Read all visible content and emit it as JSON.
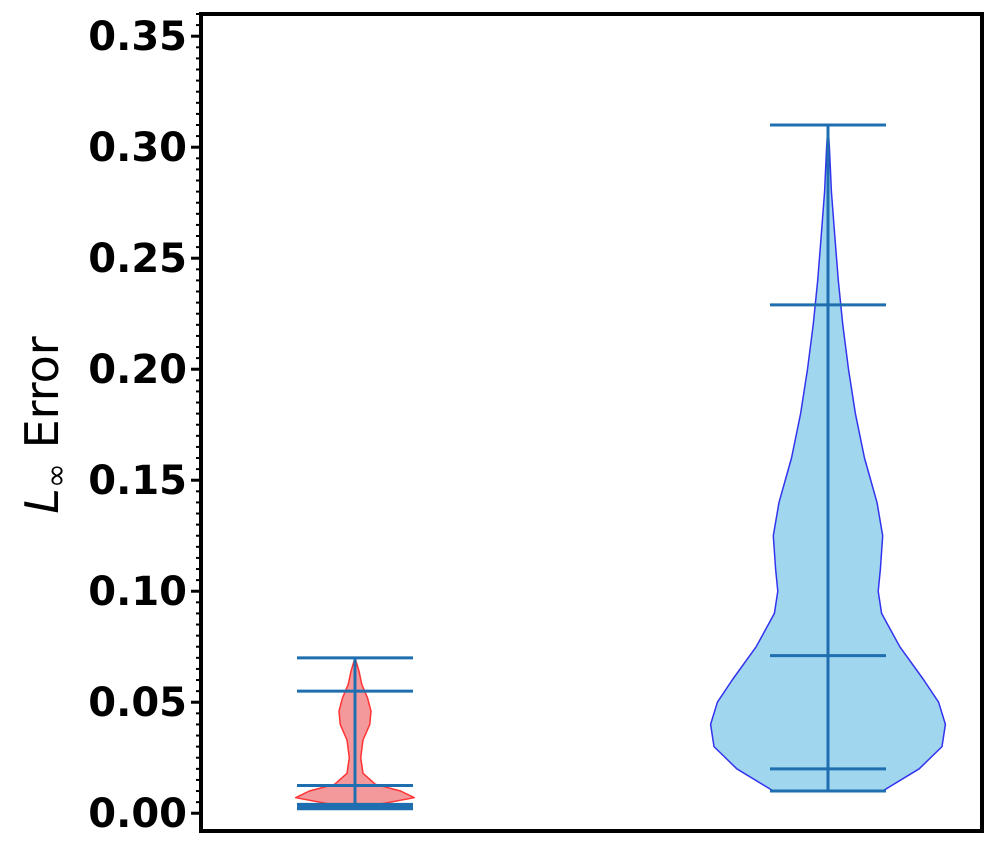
{
  "chart_data": {
    "type": "violin",
    "ylabel_main": "L",
    "ylabel_sub": "∞",
    "ylabel_rest": " Error",
    "ylim": [
      -0.008,
      0.36
    ],
    "yticks": [
      0.0,
      0.05,
      0.1,
      0.15,
      0.2,
      0.25,
      0.3,
      0.35
    ],
    "ytick_labels": [
      "0.00",
      "0.05",
      "0.10",
      "0.15",
      "0.20",
      "0.25",
      "0.30",
      "0.35"
    ],
    "minor_tick_step": 0.005,
    "grid": false,
    "colors": {
      "cap_lines": "#1f6fb0",
      "violin1_fill": "#f4999b",
      "violin1_edge": "#ff3333",
      "violin2_fill": "#a0d6ee",
      "violin2_edge": "#3333ee"
    },
    "violins": [
      {
        "position": 1,
        "fill_key": "violin1_fill",
        "edge_key": "violin1_edge",
        "min": 0.003,
        "max": 0.07,
        "quantile_lines": [
          0.002,
          0.004,
          0.0125,
          0.055
        ],
        "profile": [
          [
            0.003,
            0.1
          ],
          [
            0.007,
            0.52
          ],
          [
            0.01,
            0.4
          ],
          [
            0.013,
            0.18
          ],
          [
            0.018,
            0.07
          ],
          [
            0.025,
            0.05
          ],
          [
            0.033,
            0.07
          ],
          [
            0.04,
            0.13
          ],
          [
            0.046,
            0.14
          ],
          [
            0.052,
            0.11
          ],
          [
            0.058,
            0.06
          ],
          [
            0.064,
            0.035
          ],
          [
            0.07,
            0.0
          ]
        ]
      },
      {
        "position": 2,
        "fill_key": "violin2_fill",
        "edge_key": "violin2_edge",
        "min": 0.01,
        "max": 0.31,
        "quantile_lines": [
          0.02,
          0.071,
          0.229
        ],
        "profile": [
          [
            0.01,
            0.48
          ],
          [
            0.02,
            0.8
          ],
          [
            0.03,
            1.0
          ],
          [
            0.04,
            1.03
          ],
          [
            0.05,
            0.97
          ],
          [
            0.06,
            0.84
          ],
          [
            0.075,
            0.63
          ],
          [
            0.09,
            0.47
          ],
          [
            0.1,
            0.44
          ],
          [
            0.11,
            0.46
          ],
          [
            0.125,
            0.48
          ],
          [
            0.14,
            0.43
          ],
          [
            0.16,
            0.32
          ],
          [
            0.18,
            0.24
          ],
          [
            0.2,
            0.18
          ],
          [
            0.22,
            0.13
          ],
          [
            0.24,
            0.09
          ],
          [
            0.26,
            0.06
          ],
          [
            0.28,
            0.03
          ],
          [
            0.3,
            0.012
          ],
          [
            0.31,
            0.0
          ]
        ]
      }
    ]
  }
}
